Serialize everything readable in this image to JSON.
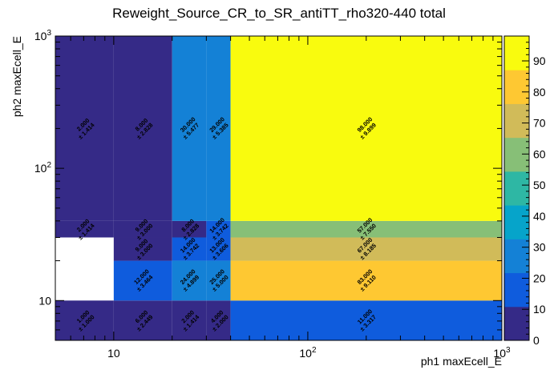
{
  "chart_data": {
    "type": "heatmap",
    "title": "Reweight_Source_CR_to_SR_antiTT_rho320-440 total",
    "xlabel": "ph1 maxEcell_E",
    "ylabel": "ph2 maxEcell_E",
    "xscale": "log",
    "yscale": "log",
    "xlim": [
      5,
      1000
    ],
    "ylim": [
      5,
      1000
    ],
    "x_edges": [
      5,
      10,
      20,
      30,
      40,
      1000
    ],
    "y_edges": [
      5,
      10,
      20,
      30,
      40,
      1000
    ],
    "x_tick_labels": [
      "10",
      "10^2",
      "10^3"
    ],
    "y_tick_labels": [
      "10",
      "10^2",
      "10^3"
    ],
    "color_scale": {
      "min": 0,
      "max": 98,
      "ticks": [
        "0",
        "10",
        "20",
        "30",
        "40",
        "50",
        "60",
        "70",
        "80",
        "90"
      ],
      "palette": [
        "#352a87",
        "#0f5cdd",
        "#1481d6",
        "#06a4ca",
        "#2eb7a4",
        "#87bf77",
        "#d1bb59",
        "#fec832",
        "#f9fb0e"
      ]
    },
    "cells": [
      {
        "xi": 0,
        "yi": 0,
        "value": 1,
        "label": "1.000",
        "error": "± 1.000"
      },
      {
        "xi": 1,
        "yi": 0,
        "value": 6,
        "label": "6.000",
        "error": "± 2.449"
      },
      {
        "xi": 2,
        "yi": 0,
        "value": 2,
        "label": "2.000",
        "error": "± 1.414"
      },
      {
        "xi": 3,
        "yi": 0,
        "value": 4,
        "label": "4.000",
        "error": "± 2.000"
      },
      {
        "xi": 4,
        "yi": 0,
        "value": 11,
        "label": "11.000",
        "error": "± 3.317"
      },
      {
        "xi": 1,
        "yi": 1,
        "value": 12,
        "label": "12.000",
        "error": "± 3.464"
      },
      {
        "xi": 2,
        "yi": 1,
        "value": 24,
        "label": "24.000",
        "error": "± 4.899"
      },
      {
        "xi": 3,
        "yi": 1,
        "value": 25,
        "label": "25.000",
        "error": "± 5.000"
      },
      {
        "xi": 4,
        "yi": 1,
        "value": 83,
        "label": "83.000",
        "error": "± 9.110"
      },
      {
        "xi": 1,
        "yi": 2,
        "value": 9,
        "label": "9.000",
        "error": "± 3.000"
      },
      {
        "xi": 2,
        "yi": 2,
        "value": 14,
        "label": "14.000",
        "error": "± 3.742"
      },
      {
        "xi": 3,
        "yi": 2,
        "value": 13,
        "label": "13.000",
        "error": "± 3.606"
      },
      {
        "xi": 4,
        "yi": 2,
        "value": 67,
        "label": "67.000",
        "error": "± 8.185"
      },
      {
        "xi": 0,
        "yi": 3,
        "value": 2,
        "label": "2.000",
        "error": "± 1.414"
      },
      {
        "xi": 1,
        "yi": 3,
        "value": 9,
        "label": "9.000",
        "error": "± 3.000"
      },
      {
        "xi": 2,
        "yi": 3,
        "value": 8,
        "label": "8.000",
        "error": "± 2.828"
      },
      {
        "xi": 3,
        "yi": 3,
        "value": 14,
        "label": "14.000",
        "error": "± 3.742"
      },
      {
        "xi": 4,
        "yi": 3,
        "value": 57,
        "label": "57.000",
        "error": "± 7.550"
      },
      {
        "xi": 0,
        "yi": 4,
        "value": 2,
        "label": "2.000",
        "error": "± 1.414"
      },
      {
        "xi": 1,
        "yi": 4,
        "value": 8,
        "label": "8.000",
        "error": "± 2.828"
      },
      {
        "xi": 2,
        "yi": 4,
        "value": 30,
        "label": "30.000",
        "error": "± 5.477"
      },
      {
        "xi": 3,
        "yi": 4,
        "value": 29,
        "label": "29.000",
        "error": "± 5.385"
      },
      {
        "xi": 4,
        "yi": 4,
        "value": 98,
        "label": "98.000",
        "error": "± 9.899"
      }
    ]
  }
}
